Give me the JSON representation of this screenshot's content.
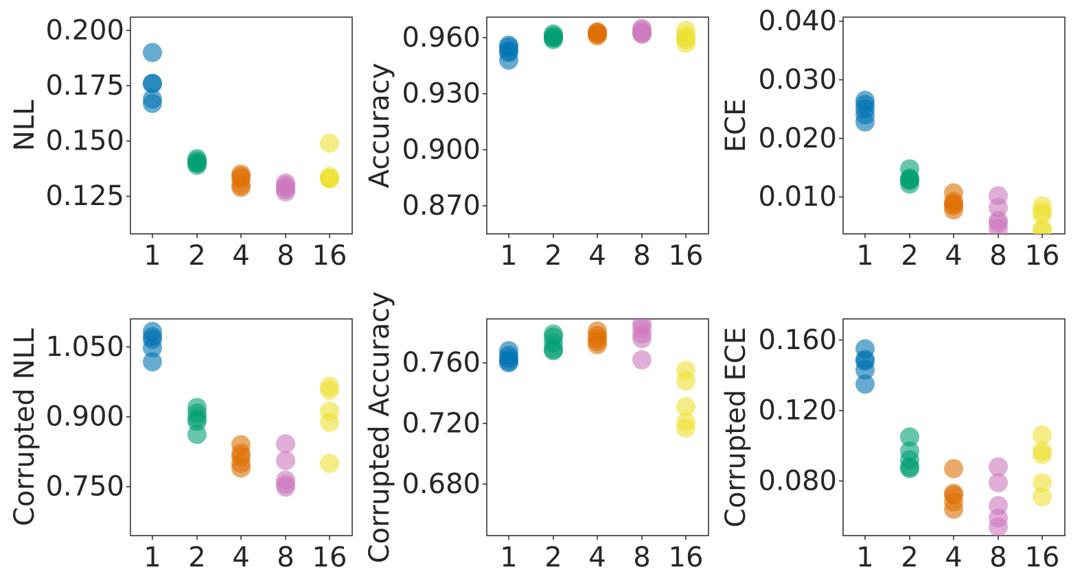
{
  "colors": {
    "1": "#0173b2",
    "2": "#029e73",
    "4": "#de6f04",
    "8": "#cc78bc",
    "16": "#ece133",
    "frame": "#262626"
  },
  "chart_data": [
    {
      "type": "scatter",
      "categories": [
        "1",
        "2",
        "4",
        "8",
        "16"
      ],
      "ylabel": "NLL",
      "ylim": [
        0.108,
        0.206
      ],
      "yticks": [
        0.125,
        0.15,
        0.175,
        0.2
      ],
      "yticklabels": [
        "0.125",
        "0.150",
        "0.175",
        "0.200"
      ],
      "series": [
        {
          "category": "1",
          "values": [
            0.19,
            0.176,
            0.176,
            0.169,
            0.167
          ]
        },
        {
          "category": "2",
          "values": [
            0.142,
            0.141,
            0.14,
            0.14,
            0.139
          ]
        },
        {
          "category": "4",
          "values": [
            0.135,
            0.134,
            0.133,
            0.13,
            0.129
          ]
        },
        {
          "category": "8",
          "values": [
            0.131,
            0.13,
            0.129,
            0.128,
            0.127
          ]
        },
        {
          "category": "16",
          "values": [
            0.149,
            0.134,
            0.133,
            0.133,
            0.133
          ]
        }
      ]
    },
    {
      "type": "scatter",
      "categories": [
        "1",
        "2",
        "4",
        "8",
        "16"
      ],
      "ylabel": "Accuracy",
      "ylim": [
        0.855,
        0.971
      ],
      "yticks": [
        0.87,
        0.9,
        0.93,
        0.96
      ],
      "yticklabels": [
        "0.870",
        "0.900",
        "0.930",
        "0.960"
      ],
      "series": [
        {
          "category": "1",
          "values": [
            0.956,
            0.955,
            0.953,
            0.952,
            0.948
          ]
        },
        {
          "category": "2",
          "values": [
            0.962,
            0.961,
            0.96,
            0.96,
            0.959
          ]
        },
        {
          "category": "4",
          "values": [
            0.963,
            0.963,
            0.962,
            0.962,
            0.961
          ]
        },
        {
          "category": "8",
          "values": [
            0.965,
            0.964,
            0.963,
            0.962,
            0.962
          ]
        },
        {
          "category": "16",
          "values": [
            0.964,
            0.961,
            0.96,
            0.959,
            0.957
          ]
        }
      ]
    },
    {
      "type": "scatter",
      "categories": [
        "1",
        "2",
        "4",
        "8",
        "16"
      ],
      "ylabel": "ECE",
      "ylim": [
        0.0037,
        0.0407
      ],
      "yticks": [
        0.01,
        0.02,
        0.03,
        0.04
      ],
      "yticklabels": [
        "0.010",
        "0.020",
        "0.030",
        "0.040"
      ],
      "series": [
        {
          "category": "1",
          "values": [
            0.0265,
            0.0258,
            0.025,
            0.024,
            0.0228
          ]
        },
        {
          "category": "2",
          "values": [
            0.0148,
            0.0132,
            0.013,
            0.0128,
            0.0122
          ]
        },
        {
          "category": "4",
          "values": [
            0.0107,
            0.0092,
            0.0088,
            0.0085,
            0.0078
          ]
        },
        {
          "category": "8",
          "values": [
            0.0102,
            0.0082,
            0.006,
            0.0055,
            0.0045
          ]
        },
        {
          "category": "16",
          "values": [
            0.0085,
            0.0075,
            0.007,
            0.0045,
            0.0043
          ]
        }
      ]
    },
    {
      "type": "scatter",
      "categories": [
        "1",
        "2",
        "4",
        "8",
        "16"
      ],
      "ylabel": "Corrupted NLL",
      "ylim": [
        0.645,
        1.11
      ],
      "yticks": [
        0.75,
        0.9,
        1.05
      ],
      "yticklabels": [
        "0.750",
        "0.900",
        "1.050"
      ],
      "series": [
        {
          "category": "1",
          "values": [
            1.083,
            1.072,
            1.066,
            1.048,
            1.018
          ]
        },
        {
          "category": "2",
          "values": [
            0.92,
            0.908,
            0.897,
            0.89,
            0.862
          ]
        },
        {
          "category": "4",
          "values": [
            0.84,
            0.822,
            0.814,
            0.8,
            0.79
          ]
        },
        {
          "category": "8",
          "values": [
            0.842,
            0.806,
            0.764,
            0.755,
            0.749
          ]
        },
        {
          "category": "16",
          "values": [
            0.965,
            0.957,
            0.912,
            0.888,
            0.8
          ]
        }
      ]
    },
    {
      "type": "scatter",
      "categories": [
        "1",
        "2",
        "4",
        "8",
        "16"
      ],
      "ylabel": "Corrupted Accuracy",
      "ylim": [
        0.646,
        0.789
      ],
      "yticks": [
        0.68,
        0.72,
        0.76
      ],
      "yticklabels": [
        "0.680",
        "0.720",
        "0.760"
      ],
      "series": [
        {
          "category": "1",
          "values": [
            0.768,
            0.765,
            0.763,
            0.761,
            0.76
          ]
        },
        {
          "category": "2",
          "values": [
            0.779,
            0.777,
            0.773,
            0.769,
            0.768
          ]
        },
        {
          "category": "4",
          "values": [
            0.781,
            0.778,
            0.776,
            0.774,
            0.772
          ]
        },
        {
          "category": "8",
          "values": [
            0.786,
            0.783,
            0.779,
            0.776,
            0.762
          ]
        },
        {
          "category": "16",
          "values": [
            0.755,
            0.748,
            0.731,
            0.721,
            0.717
          ]
        }
      ]
    },
    {
      "type": "scatter",
      "categories": [
        "1",
        "2",
        "4",
        "8",
        "16"
      ],
      "ylabel": "Corrupted ECE",
      "ylim": [
        0.049,
        0.172
      ],
      "yticks": [
        0.08,
        0.12,
        0.16
      ],
      "yticklabels": [
        "0.080",
        "0.120",
        "0.160"
      ],
      "series": [
        {
          "category": "1",
          "values": [
            0.155,
            0.149,
            0.148,
            0.143,
            0.135
          ]
        },
        {
          "category": "2",
          "values": [
            0.105,
            0.097,
            0.092,
            0.088,
            0.087
          ]
        },
        {
          "category": "4",
          "values": [
            0.087,
            0.073,
            0.072,
            0.068,
            0.064
          ]
        },
        {
          "category": "8",
          "values": [
            0.088,
            0.079,
            0.066,
            0.059,
            0.054
          ]
        },
        {
          "category": "16",
          "values": [
            0.106,
            0.097,
            0.095,
            0.079,
            0.071
          ]
        }
      ]
    }
  ]
}
